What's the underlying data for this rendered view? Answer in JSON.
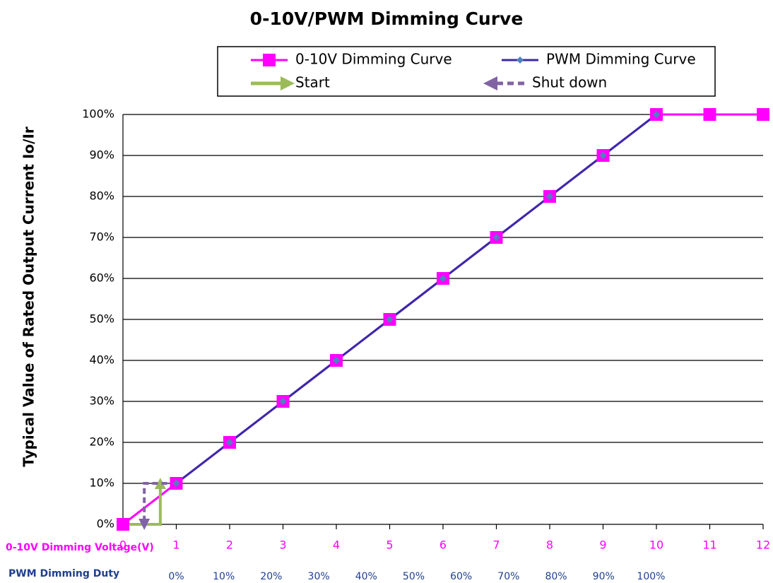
{
  "chart_data": {
    "type": "line",
    "title": "0-10V/PWM Dimming Curve",
    "y_label": "Typical Value of Rated Output Current Io/Ir",
    "x_label": "0-10V Dimming Voltage(V)",
    "x2_label": "PWM Dimming Duty",
    "xlim": [
      0,
      12
    ],
    "xticks": [
      0,
      1,
      2,
      3,
      4,
      5,
      6,
      7,
      8,
      9,
      10,
      11,
      12
    ],
    "x2lim": [
      -11.24,
      123.6
    ],
    "x2ticks": [
      {
        "value": 0,
        "label": "0%"
      },
      {
        "value": 10,
        "label": "10%"
      },
      {
        "value": 20,
        "label": "20%"
      },
      {
        "value": 30,
        "label": "30%"
      },
      {
        "value": 40,
        "label": "40%"
      },
      {
        "value": 50,
        "label": "50%"
      },
      {
        "value": 60,
        "label": "60%"
      },
      {
        "value": 70,
        "label": "70%"
      },
      {
        "value": 80,
        "label": "80%"
      },
      {
        "value": 90,
        "label": "90%"
      },
      {
        "value": 100,
        "label": "100%"
      }
    ],
    "ylim": [
      0,
      100
    ],
    "yticks": [
      {
        "value": 0,
        "label": "0%"
      },
      {
        "value": 10,
        "label": "10%"
      },
      {
        "value": 20,
        "label": "20%"
      },
      {
        "value": 30,
        "label": "30%"
      },
      {
        "value": 40,
        "label": "40%"
      },
      {
        "value": 50,
        "label": "50%"
      },
      {
        "value": 60,
        "label": "60%"
      },
      {
        "value": 70,
        "label": "70%"
      },
      {
        "value": 80,
        "label": "80%"
      },
      {
        "value": 90,
        "label": "90%"
      },
      {
        "value": 100,
        "label": "100%"
      }
    ],
    "grid": true,
    "legend": "top",
    "series": [
      {
        "name": "0-10V Dimming Curve",
        "color": "#ff00ff",
        "marker": "square",
        "x": [
          0,
          1,
          2,
          3,
          4,
          5,
          6,
          7,
          8,
          9,
          10,
          11,
          12
        ],
        "values": [
          0,
          10,
          20,
          30,
          40,
          50,
          60,
          70,
          80,
          90,
          100,
          100,
          100
        ]
      },
      {
        "name": "PWM Dimming Curve",
        "color": "#3a2aa8",
        "marker": "diamond",
        "marker_color": "#4f81bd",
        "x": [
          1,
          2,
          3,
          4,
          5,
          6,
          7,
          8,
          9,
          10
        ],
        "values": [
          10,
          20,
          30,
          40,
          50,
          60,
          70,
          80,
          90,
          100
        ]
      },
      {
        "name": "Start",
        "color": "#9bbb59",
        "marker": "arrow",
        "x": [
          0,
          0.7,
          0.7
        ],
        "values": [
          0,
          0,
          10
        ]
      },
      {
        "name": "Shut down",
        "color": "#8064a2",
        "marker": "arrow",
        "dashed": true,
        "x": [
          1,
          0.4,
          0.4
        ],
        "values": [
          10,
          10,
          0
        ]
      }
    ]
  }
}
